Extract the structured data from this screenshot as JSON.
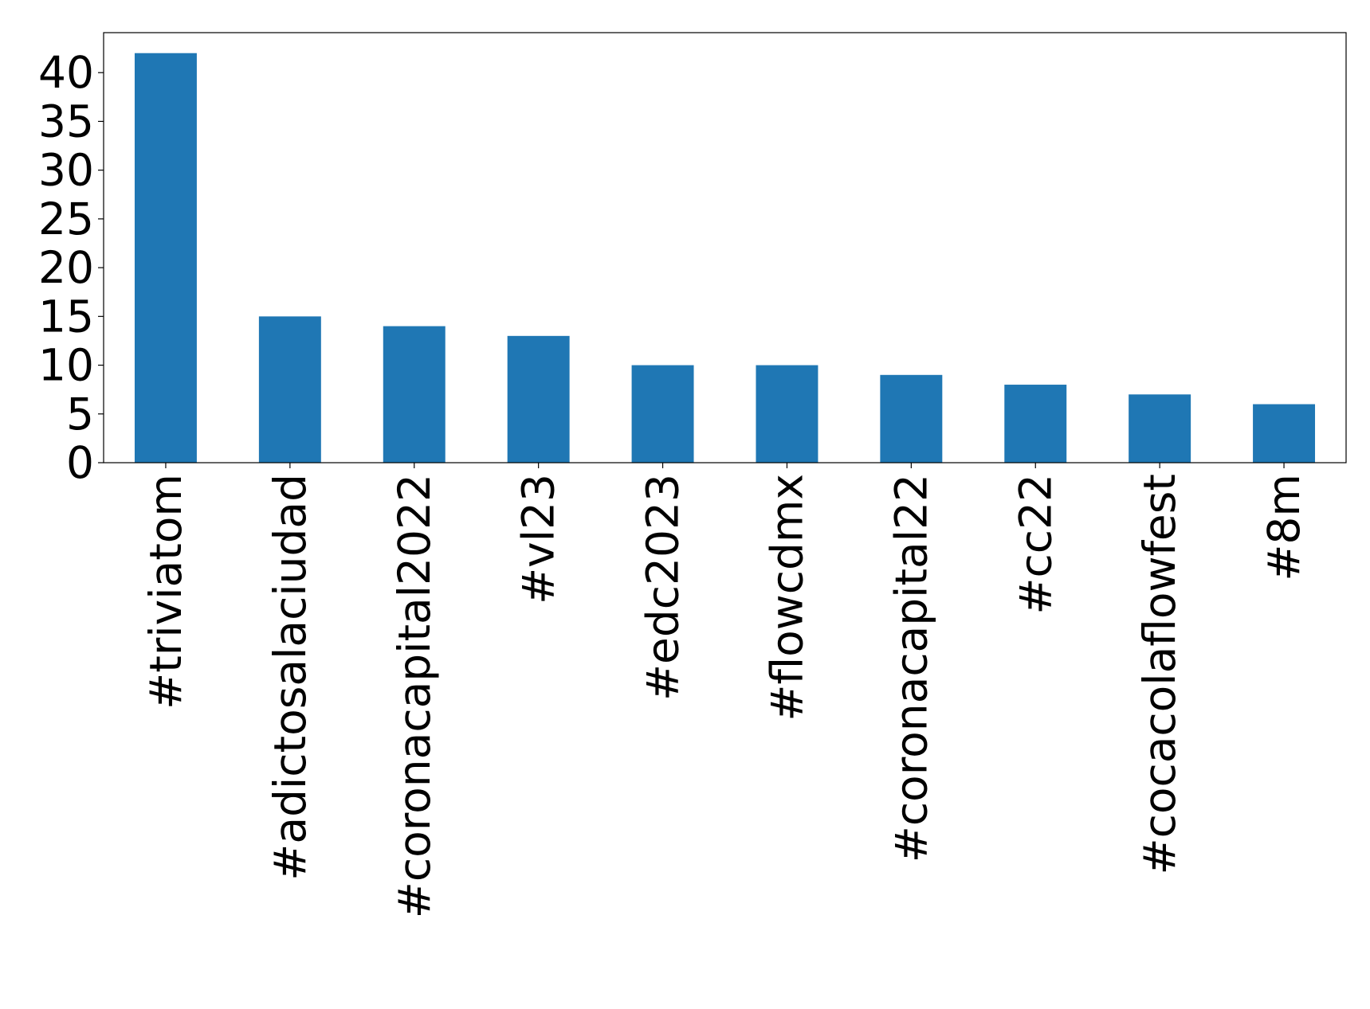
{
  "chart_data": {
    "type": "bar",
    "title": "",
    "xlabel": "",
    "ylabel": "",
    "categories": [
      "#triviatom",
      "#adictosalaciudad",
      "#coronacapital2022",
      "#vl23",
      "#edc2023",
      "#flowcdmx",
      "#coronacapital22",
      "#cc22",
      "#cocacolaflowfest",
      "#8m"
    ],
    "values": [
      42,
      15,
      14,
      13,
      10,
      10,
      9,
      8,
      7,
      6
    ],
    "ylim": [
      0,
      44.1
    ],
    "yticks": [
      0,
      5,
      10,
      15,
      20,
      25,
      30,
      35,
      40
    ],
    "bar_color": "#1f77b4",
    "grid": false,
    "legend": "none"
  }
}
